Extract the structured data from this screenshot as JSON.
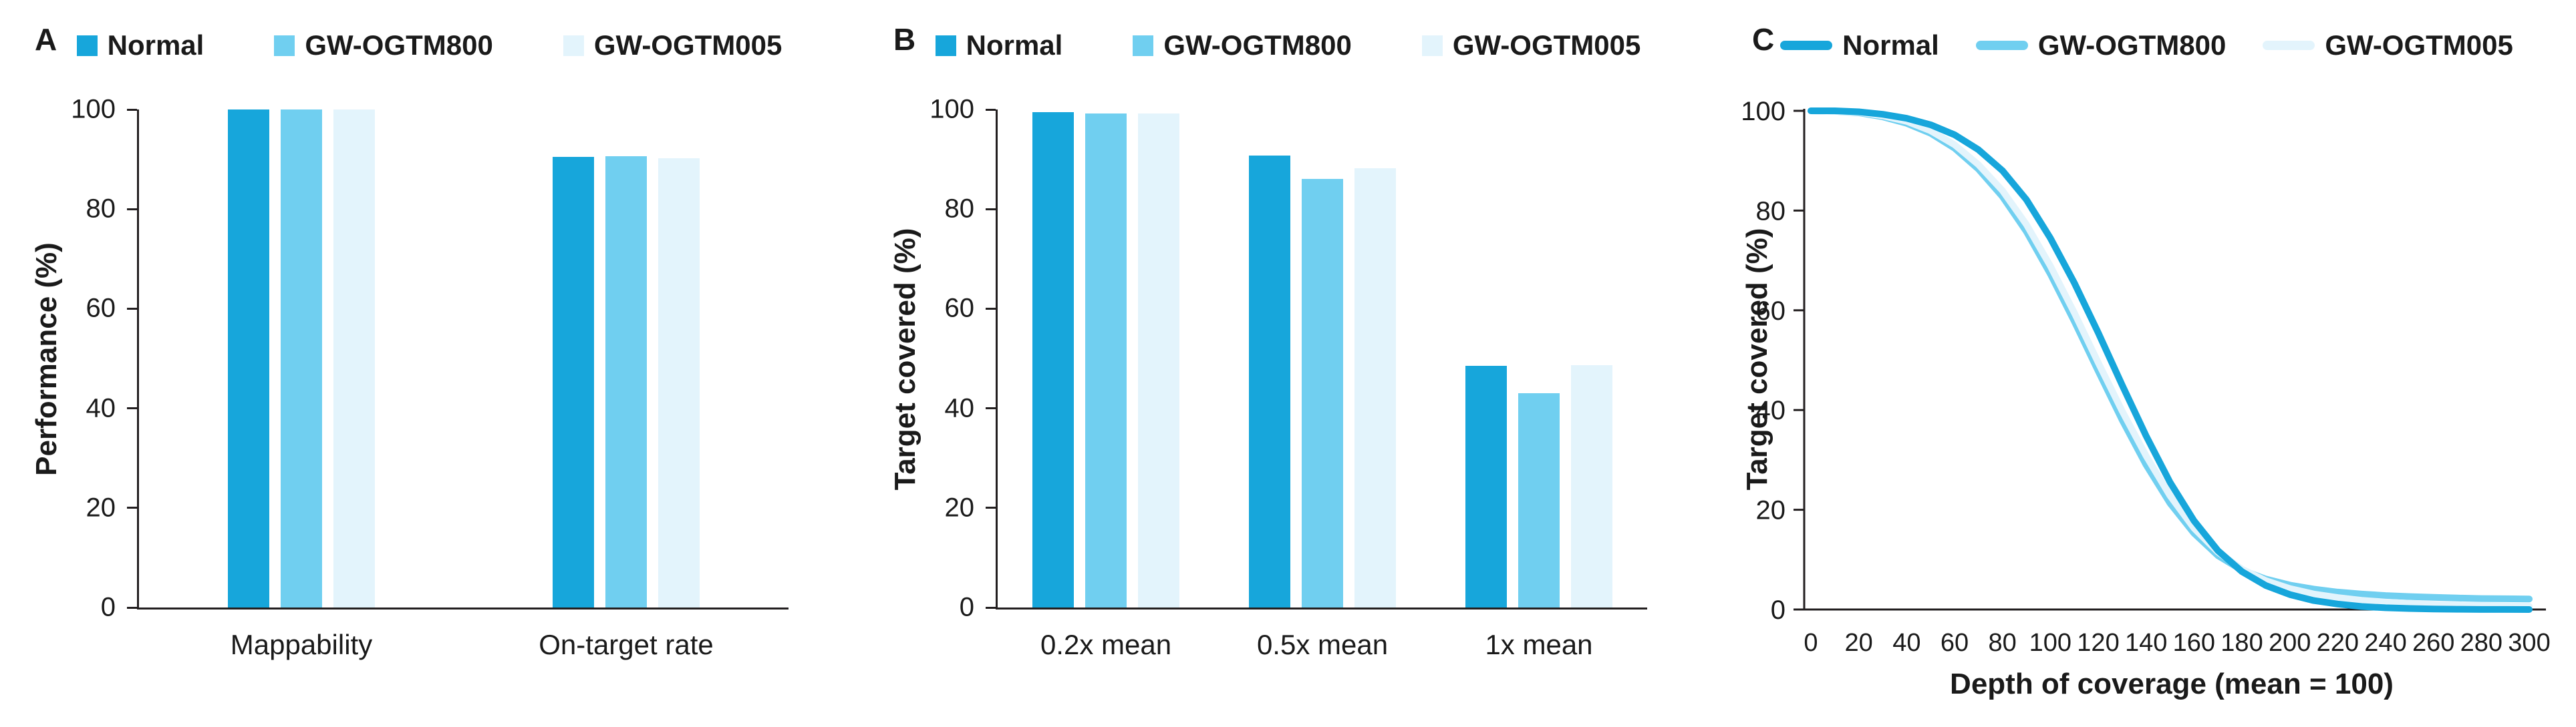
{
  "colors": {
    "normal": "#17A6DB",
    "gw_ogtm800": "#70CFF0",
    "gw_ogtm005": "#E3F4FC",
    "axis": "#231f20",
    "text": "#1a1a1a"
  },
  "panels": [
    {
      "label": "A"
    },
    {
      "label": "B"
    },
    {
      "label": "C"
    }
  ],
  "legend_labels": [
    "Normal",
    "GW-OGTM800",
    "GW-OGTM005"
  ],
  "chart_data": [
    {
      "type": "bar",
      "panel": "A",
      "title": "",
      "categories": [
        "Mappability",
        "On-target rate"
      ],
      "series": [
        {
          "name": "Normal",
          "color": "#17A6DB",
          "values": [
            100,
            90.5
          ]
        },
        {
          "name": "GW-OGTM800",
          "color": "#70CFF0",
          "values": [
            100,
            90.6
          ]
        },
        {
          "name": "GW-OGTM005",
          "color": "#E3F4FC",
          "values": [
            100,
            90.2
          ]
        }
      ],
      "xlabel": "",
      "ylabel": "Performance (%)",
      "ylim": [
        0,
        100
      ],
      "yticks": [
        0,
        20,
        40,
        60,
        80,
        100
      ],
      "grid": false,
      "legend_position": "top"
    },
    {
      "type": "bar",
      "panel": "B",
      "title": "",
      "categories": [
        "0.2x mean",
        "0.5x mean",
        "1x mean"
      ],
      "series": [
        {
          "name": "Normal",
          "color": "#17A6DB",
          "values": [
            99.5,
            90.8,
            48.5
          ]
        },
        {
          "name": "GW-OGTM800",
          "color": "#70CFF0",
          "values": [
            99.2,
            86.0,
            43.0
          ]
        },
        {
          "name": "GW-OGTM005",
          "color": "#E3F4FC",
          "values": [
            99.2,
            88.2,
            48.6
          ]
        }
      ],
      "xlabel": "",
      "ylabel": "Target covered (%)",
      "ylim": [
        0,
        100
      ],
      "yticks": [
        0,
        20,
        40,
        60,
        80,
        100
      ],
      "grid": false,
      "legend_position": "top"
    },
    {
      "type": "line",
      "panel": "C",
      "title": "",
      "x": [
        0,
        10,
        20,
        30,
        40,
        50,
        60,
        70,
        80,
        90,
        100,
        110,
        120,
        130,
        140,
        150,
        160,
        170,
        180,
        190,
        200,
        210,
        220,
        230,
        240,
        250,
        260,
        270,
        280,
        290,
        300
      ],
      "series": [
        {
          "name": "Normal",
          "color": "#17A6DB",
          "values": [
            100,
            100,
            99.8,
            99.3,
            98.5,
            97.2,
            95.2,
            92.2,
            88,
            82.2,
            74.5,
            65.5,
            55.5,
            45,
            34.8,
            25.5,
            17.8,
            11.8,
            7.6,
            4.8,
            3,
            1.8,
            1.1,
            0.6,
            0.35,
            0.2,
            0.1,
            0.05,
            0.02,
            0.01,
            0
          ]
        },
        {
          "name": "GW-OGTM800",
          "color": "#70CFF0",
          "values": [
            100,
            99.9,
            99.6,
            98.8,
            97.5,
            95.5,
            92.5,
            88.3,
            82.8,
            75.8,
            67.3,
            57.8,
            47.8,
            38,
            29,
            21.3,
            15.3,
            10.8,
            7.9,
            6.1,
            4.9,
            4.1,
            3.5,
            3.1,
            2.8,
            2.6,
            2.45,
            2.3,
            2.2,
            2.15,
            2.1
          ]
        },
        {
          "name": "GW-OGTM005",
          "color": "#E3F4FC",
          "values": [
            100,
            99.9,
            99.7,
            99,
            97.9,
            96,
            93.2,
            89.2,
            84,
            77.2,
            68.9,
            59.5,
            49.5,
            39.8,
            30.8,
            22.8,
            16.3,
            11.5,
            8.1,
            5.8,
            4.2,
            3.1,
            2.4,
            1.85,
            1.5,
            1.25,
            1.05,
            0.9,
            0.8,
            0.72,
            0.65
          ]
        }
      ],
      "draw_order": [
        1,
        2,
        0
      ],
      "xlabel": "Depth of coverage (mean = 100)",
      "ylabel": "Target covered (%)",
      "xlim": [
        0,
        300
      ],
      "ylim": [
        0,
        100
      ],
      "xticks": [
        0,
        20,
        40,
        60,
        80,
        100,
        120,
        140,
        160,
        180,
        200,
        220,
        240,
        260,
        280,
        300
      ],
      "yticks": [
        0,
        20,
        40,
        60,
        80,
        100
      ],
      "grid": false,
      "legend_position": "top"
    }
  ]
}
